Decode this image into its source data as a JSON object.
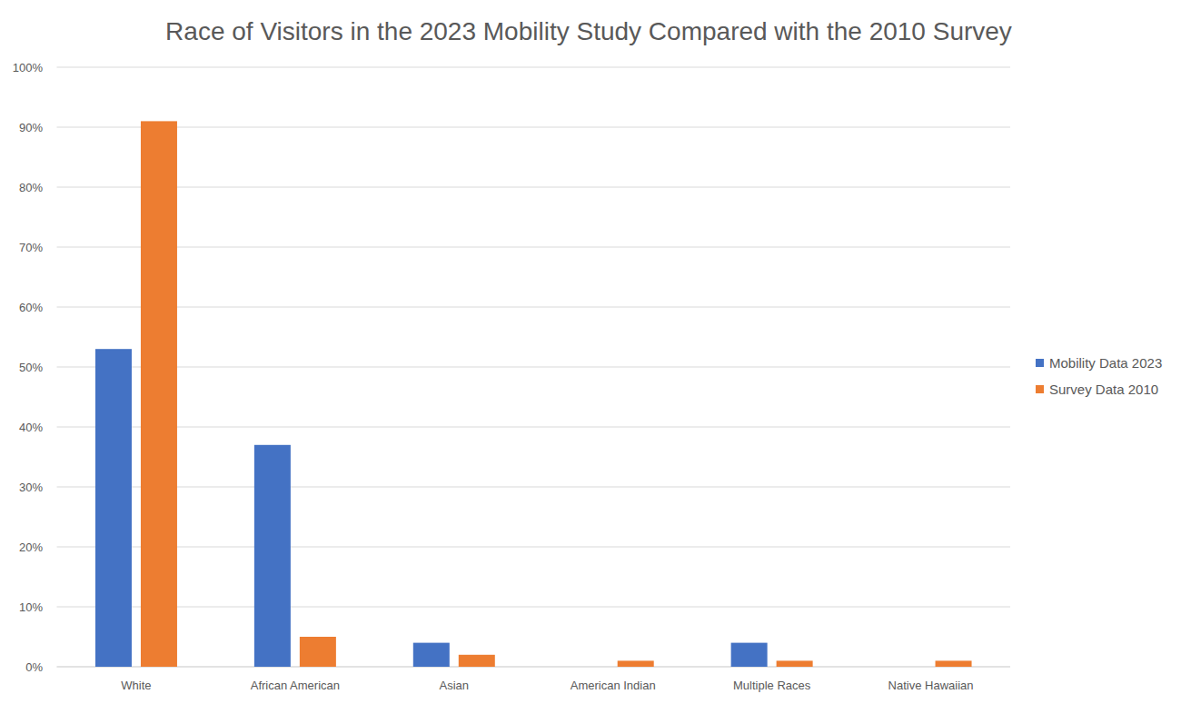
{
  "chart_data": {
    "type": "bar",
    "title": "Race of Visitors in the 2023 Mobility Study Compared with the 2010 Survey",
    "categories": [
      "White",
      "African American",
      "Asian",
      "American Indian",
      "Multiple Races",
      "Native Hawaiian"
    ],
    "series": [
      {
        "name": "Mobility Data 2023",
        "color": "#4472c4",
        "values": [
          53,
          37,
          4,
          0,
          4,
          0
        ]
      },
      {
        "name": "Survey Data 2010",
        "color": "#ed7d31",
        "values": [
          91,
          5,
          2,
          1,
          1,
          1
        ]
      }
    ],
    "ylim": [
      0,
      100
    ],
    "yticks": [
      {
        "value": 0,
        "label": "0%"
      },
      {
        "value": 10,
        "label": "10%"
      },
      {
        "value": 20,
        "label": "20%"
      },
      {
        "value": 30,
        "label": "30%"
      },
      {
        "value": 40,
        "label": "40%"
      },
      {
        "value": 50,
        "label": "50%"
      },
      {
        "value": 60,
        "label": "60%"
      },
      {
        "value": 70,
        "label": "70%"
      },
      {
        "value": 80,
        "label": "80%"
      },
      {
        "value": 90,
        "label": "90%"
      },
      {
        "value": 100,
        "label": "100%"
      }
    ],
    "grid": true,
    "legend": "right"
  }
}
